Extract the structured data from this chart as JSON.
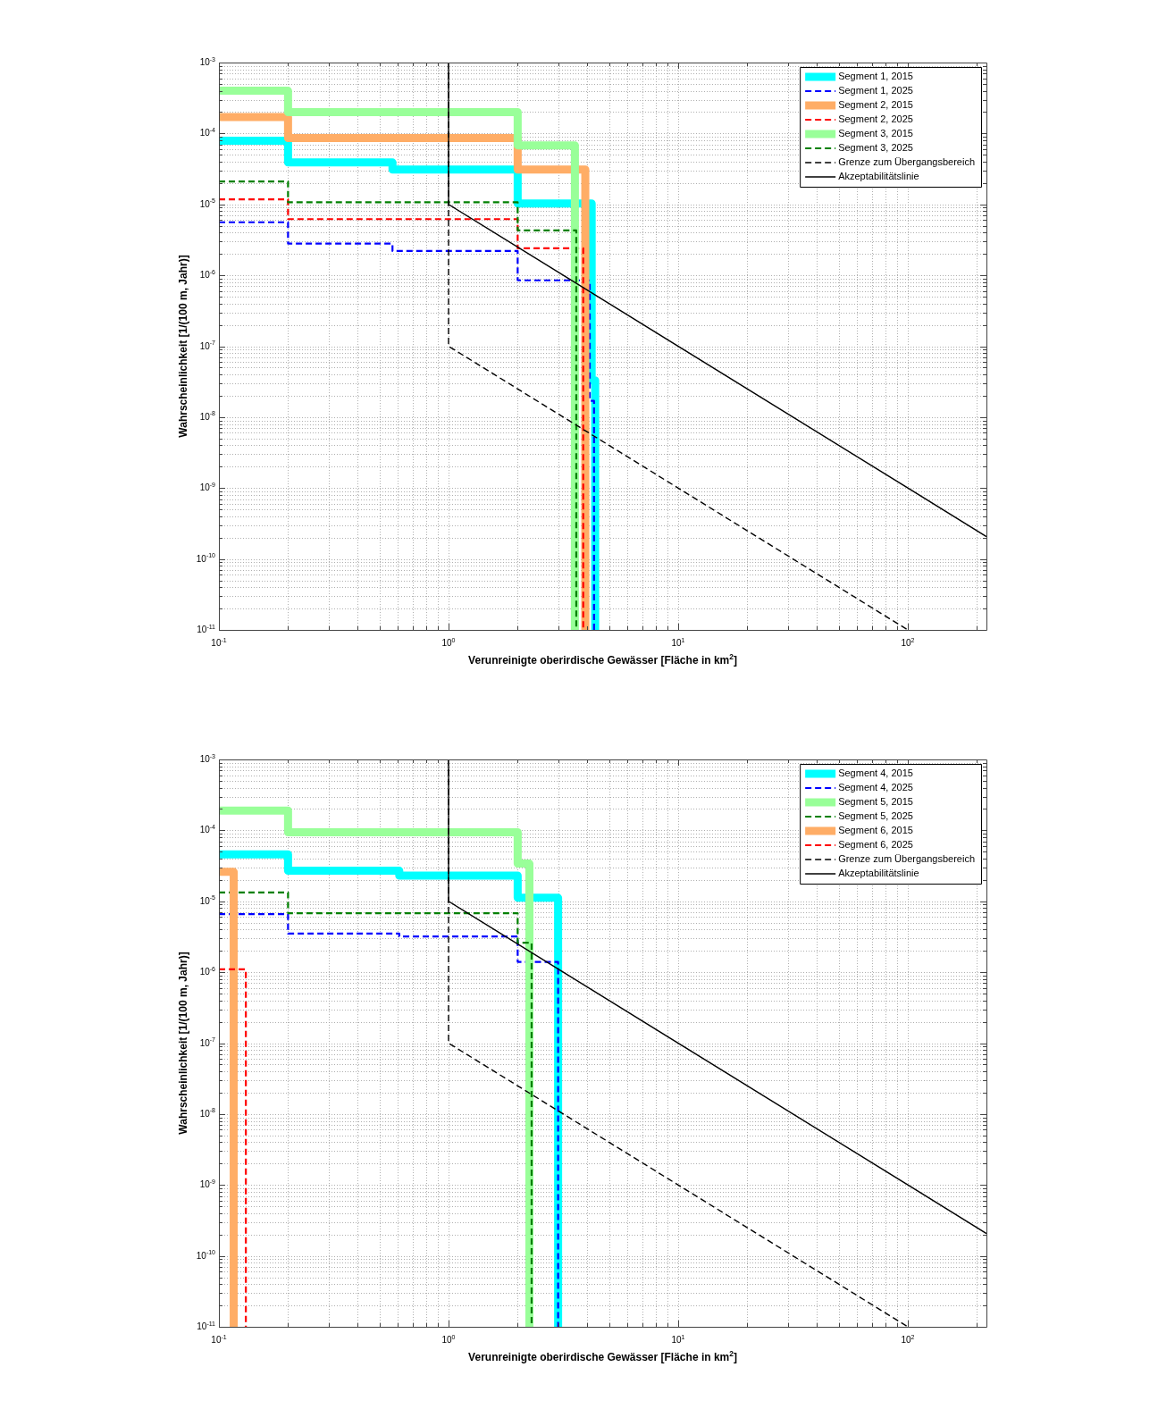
{
  "chart_data": [
    {
      "type": "step",
      "xlabel": "Verunreinigte oberirdische Gewässer [Fläche in km$^{2}$]",
      "ylabel": "Wahrscheinlichkeit [1/(100 m, Jahr)]",
      "log": "xy",
      "grid": true,
      "legend": "top right",
      "xlim": [
        0.1,
        220
      ],
      "ylim": [
        1e-11,
        0.001
      ],
      "xticks": [
        {
          "value": 0.1,
          "label": "10$^{-1}$"
        },
        {
          "value": 1,
          "label": "10$^{0}$"
        },
        {
          "value": 10,
          "label": "10$^{1}$"
        },
        {
          "value": 100,
          "label": "10$^{2}$"
        }
      ],
      "yticks": [
        {
          "value": 1e-11,
          "label": "10$^{-11}$"
        },
        {
          "value": 1e-10,
          "label": "10$^{-10}$"
        },
        {
          "value": 1e-09,
          "label": "10$^{-9}$"
        },
        {
          "value": 1e-08,
          "label": "10$^{-8}$"
        },
        {
          "value": 1e-07,
          "label": "10$^{-7}$"
        },
        {
          "value": 1e-06,
          "label": "10$^{-6}$"
        },
        {
          "value": 1e-05,
          "label": "10$^{-5}$"
        },
        {
          "value": 0.0001,
          "label": "10$^{-4}$"
        },
        {
          "value": 0.001,
          "label": "10$^{-3}$"
        }
      ],
      "series": [
        {
          "name": "Segment 1, 2015",
          "color": "#00ffff",
          "line_style": "solid",
          "x": [
            0.1,
            0.2,
            0.57,
            2,
            4.2,
            4.35
          ],
          "values": [
            7.9e-05,
            3.9e-05,
            3.1e-05,
            1.03e-05,
            3.3e-08,
            1e-11
          ]
        },
        {
          "name": "Segment 1, 2025",
          "color": "#0000ff",
          "line_style": "dashed",
          "x": [
            0.1,
            0.2,
            0.57,
            2,
            4.12,
            4.3
          ],
          "values": [
            5.6e-06,
            2.8e-06,
            2.2e-06,
            8.5e-07,
            1.7e-08,
            1e-11
          ]
        },
        {
          "name": "Segment 2, 2015",
          "color": "#ffad66",
          "line_style": "solid",
          "x": [
            0.1,
            0.2,
            2,
            3.94
          ],
          "values": [
            0.00017,
            8.6e-05,
            3.1e-05,
            1e-11
          ]
        },
        {
          "name": "Segment 2, 2025",
          "color": "#ff0000",
          "line_style": "dashed",
          "x": [
            0.1,
            0.2,
            2,
            3.86
          ],
          "values": [
            1.18e-05,
            6.2e-06,
            2.4e-06,
            1e-11
          ]
        },
        {
          "name": "Segment 3, 2015",
          "color": "#99ff99",
          "line_style": "solid",
          "x": [
            0.1,
            0.2,
            2,
            3.55
          ],
          "values": [
            0.0004,
            0.0002,
            6.8e-05,
            1e-11
          ]
        },
        {
          "name": "Segment 3, 2025",
          "color": "#008000",
          "line_style": "dashed",
          "x": [
            0.1,
            0.2,
            2,
            3.6
          ],
          "values": [
            2.1e-05,
            1.07e-05,
            4.3e-06,
            1e-11
          ]
        },
        {
          "name": "Grenze zum Übergangsbereich",
          "type": "line",
          "color": "#000000",
          "line_style": "dashed",
          "x": [
            1,
            1,
            100
          ],
          "values": [
            0.001,
            1e-07,
            1e-11
          ]
        },
        {
          "name": "Akzeptabilitätslinie",
          "type": "line",
          "color": "#000000",
          "line_style": "solid",
          "x": [
            1,
            1,
            220
          ],
          "values": [
            0.001,
            1e-05,
            2.07e-10
          ]
        }
      ]
    },
    {
      "type": "step",
      "xlabel": "Verunreinigte oberirdische Gewässer [Fläche in km$^{2}$]",
      "ylabel": "Wahrscheinlichkeit [1/(100 m, Jahr)]",
      "log": "xy",
      "grid": true,
      "legend": "top right",
      "xlim": [
        0.1,
        220
      ],
      "ylim": [
        1e-11,
        0.001
      ],
      "xticks": [
        {
          "value": 0.1,
          "label": "10$^{-1}$"
        },
        {
          "value": 1,
          "label": "10$^{0}$"
        },
        {
          "value": 10,
          "label": "10$^{1}$"
        },
        {
          "value": 100,
          "label": "10$^{2}$"
        }
      ],
      "yticks": [
        {
          "value": 1e-11,
          "label": "10$^{-11}$"
        },
        {
          "value": 1e-10,
          "label": "10$^{-10}$"
        },
        {
          "value": 1e-09,
          "label": "10$^{-9}$"
        },
        {
          "value": 1e-08,
          "label": "10$^{-8}$"
        },
        {
          "value": 1e-07,
          "label": "10$^{-7}$"
        },
        {
          "value": 1e-06,
          "label": "10$^{-6}$"
        },
        {
          "value": 1e-05,
          "label": "10$^{-5}$"
        },
        {
          "value": 0.0001,
          "label": "10$^{-4}$"
        },
        {
          "value": 0.001,
          "label": "10$^{-3}$"
        }
      ],
      "series": [
        {
          "name": "Segment 4, 2015",
          "color": "#00ffff",
          "line_style": "solid",
          "x": [
            0.1,
            0.2,
            0.61,
            2,
            3.0
          ],
          "values": [
            4.6e-05,
            2.7e-05,
            2.3e-05,
            1.12e-05,
            1e-11
          ]
        },
        {
          "name": "Segment 4, 2025",
          "color": "#0000ff",
          "line_style": "dashed",
          "x": [
            0.1,
            0.2,
            0.61,
            2,
            3.0
          ],
          "values": [
            6.6e-06,
            3.5e-06,
            3.2e-06,
            1.4e-06,
            1e-11
          ]
        },
        {
          "name": "Segment 5, 2015",
          "color": "#99ff99",
          "line_style": "solid",
          "x": [
            0.1,
            0.2,
            2,
            2.25
          ],
          "values": [
            0.00019,
            9.4e-05,
            3.4e-05,
            1e-11
          ]
        },
        {
          "name": "Segment 5, 2025",
          "color": "#008000",
          "line_style": "dashed",
          "x": [
            0.1,
            0.2,
            2,
            2.3
          ],
          "values": [
            1.33e-05,
            6.8e-06,
            2.6e-06,
            1e-11
          ]
        },
        {
          "name": "Segment 6, 2015",
          "color": "#ffad66",
          "line_style": "solid",
          "x": [
            0.1,
            0.116
          ],
          "values": [
            2.6e-05,
            1e-11
          ]
        },
        {
          "name": "Segment 6, 2025",
          "color": "#ff0000",
          "line_style": "dashed",
          "x": [
            0.1,
            0.131
          ],
          "values": [
            1.1e-06,
            1e-11
          ]
        },
        {
          "name": "Grenze zum Übergangsbereich",
          "type": "line",
          "color": "#000000",
          "line_style": "dashed",
          "x": [
            1,
            1,
            100
          ],
          "values": [
            0.001,
            1e-07,
            1e-11
          ]
        },
        {
          "name": "Akzeptabilitätslinie",
          "type": "line",
          "color": "#000000",
          "line_style": "solid",
          "x": [
            1,
            1,
            220
          ],
          "values": [
            0.001,
            1e-05,
            2.07e-10
          ]
        }
      ]
    }
  ]
}
